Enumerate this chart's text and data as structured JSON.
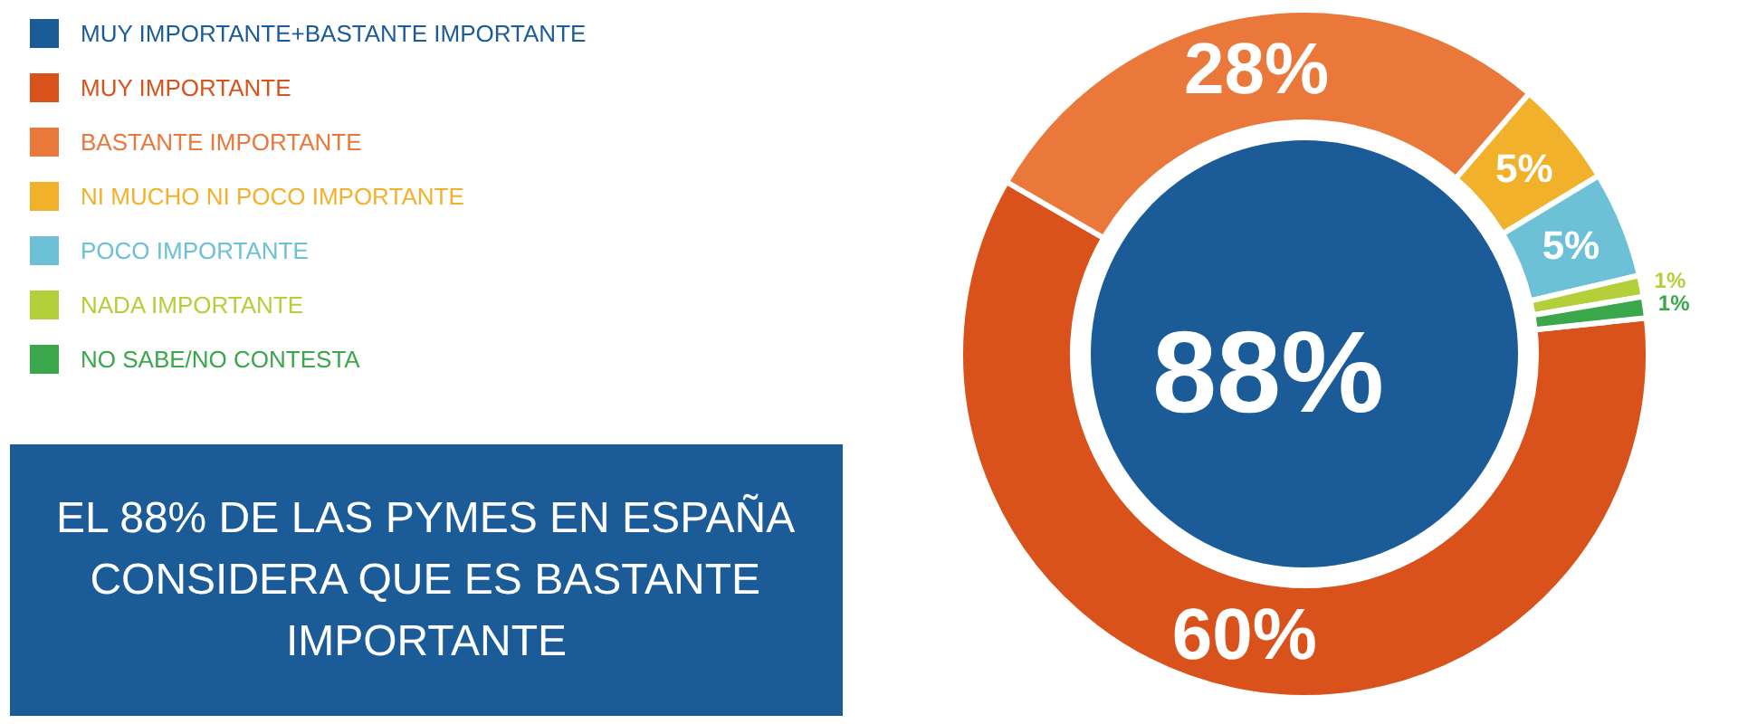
{
  "chart_data": {
    "type": "donut",
    "categories": [
      "MUY IMPORTANTE+BASTANTE IMPORTANTE",
      "MUY IMPORTANTE",
      "BASTANTE IMPORTANTE",
      "NI MUCHO NI POCO IMPORTANTE",
      "POCO IMPORTANTE",
      "NADA IMPORTANTE",
      "NO SABE/NO CONTESTA"
    ],
    "colors": [
      "#1b5b98",
      "#d9521c",
      "#e9783a",
      "#f2b12b",
      "#6cc1d6",
      "#b5cf3b",
      "#3aa74b"
    ],
    "series": [
      {
        "type": "pie",
        "values": [
          88,
          null,
          null,
          null,
          null,
          null,
          null
        ],
        "value_labels": [
          "88%",
          null,
          null,
          null,
          null,
          null,
          null
        ]
      },
      {
        "values": [
          null,
          60,
          28,
          5,
          5,
          1,
          1
        ],
        "value_labels": [
          null,
          "60%",
          "28%",
          "5%",
          "5%",
          "1%",
          "1%"
        ]
      }
    ],
    "legend": "top left",
    "annotations": [
      "EL 88% DE LAS PYMES EN ESPAÑA CONSIDERA QUE ES BASTANTE IMPORTANTE"
    ]
  }
}
